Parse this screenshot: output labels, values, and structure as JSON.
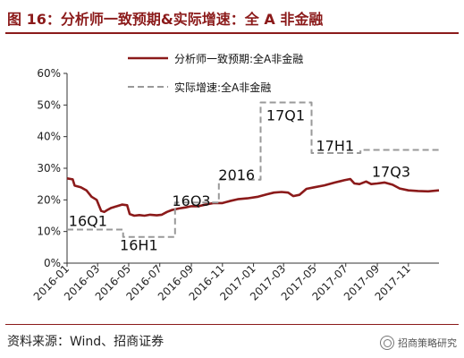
{
  "title": "图 16：分析师一致预期&实际增速：全 A 非金融",
  "source": "资料来源：Wind、招商证券",
  "brand": "招商策略研究",
  "chart_data": {
    "type": "line",
    "ylim": [
      0,
      60
    ],
    "y_ticks": [
      "0%",
      "10%",
      "20%",
      "30%",
      "40%",
      "50%",
      "60%"
    ],
    "x_range": [
      "2016-01-01",
      "2017-12-31"
    ],
    "x_ticks": [
      "2016-01",
      "2016-03",
      "2016-05",
      "2016-07",
      "2016-09",
      "2016-11",
      "2017-01",
      "2017-03",
      "2017-05",
      "2017-07",
      "2017-09",
      "2017-11"
    ],
    "legend_position": "top-center",
    "grid": false,
    "series": [
      {
        "name": "分析师一致预期:全A非金融",
        "style": "solid",
        "color": "#8B1A1A",
        "points": [
          [
            "2016-01-01",
            26.8
          ],
          [
            "2016-01-12",
            26.5
          ],
          [
            "2016-01-16",
            24.5
          ],
          [
            "2016-01-28",
            24.0
          ],
          [
            "2016-02-08",
            23.0
          ],
          [
            "2016-02-18",
            21.0
          ],
          [
            "2016-02-28",
            20.0
          ],
          [
            "2016-03-08",
            16.5
          ],
          [
            "2016-03-14",
            16.2
          ],
          [
            "2016-03-20",
            16.8
          ],
          [
            "2016-03-28",
            17.5
          ],
          [
            "2016-04-08",
            18.0
          ],
          [
            "2016-04-18",
            18.5
          ],
          [
            "2016-04-28",
            18.3
          ],
          [
            "2016-05-03",
            15.5
          ],
          [
            "2016-05-12",
            15.0
          ],
          [
            "2016-05-22",
            15.2
          ],
          [
            "2016-06-01",
            15.0
          ],
          [
            "2016-06-12",
            15.3
          ],
          [
            "2016-06-25",
            15.1
          ],
          [
            "2016-07-05",
            15.3
          ],
          [
            "2016-07-15",
            16.2
          ],
          [
            "2016-07-25",
            16.8
          ],
          [
            "2016-08-08",
            17.3
          ],
          [
            "2016-08-20",
            17.6
          ],
          [
            "2016-09-01",
            18.0
          ],
          [
            "2016-09-15",
            18.0
          ],
          [
            "2016-10-01",
            18.6
          ],
          [
            "2016-10-15",
            19.0
          ],
          [
            "2016-11-01",
            19.0
          ],
          [
            "2016-11-15",
            19.6
          ],
          [
            "2016-12-01",
            20.2
          ],
          [
            "2016-12-20",
            20.5
          ],
          [
            "2017-01-10",
            21.0
          ],
          [
            "2017-01-28",
            21.8
          ],
          [
            "2017-02-10",
            22.3
          ],
          [
            "2017-02-25",
            22.5
          ],
          [
            "2017-03-10",
            22.3
          ],
          [
            "2017-03-20",
            21.2
          ],
          [
            "2017-04-01",
            21.6
          ],
          [
            "2017-04-15",
            23.5
          ],
          [
            "2017-05-01",
            24.0
          ],
          [
            "2017-05-20",
            24.6
          ],
          [
            "2017-06-10",
            25.5
          ],
          [
            "2017-06-28",
            26.2
          ],
          [
            "2017-07-10",
            26.6
          ],
          [
            "2017-07-18",
            25.2
          ],
          [
            "2017-07-28",
            25.0
          ],
          [
            "2017-08-10",
            25.8
          ],
          [
            "2017-08-20",
            25.0
          ],
          [
            "2017-09-01",
            25.2
          ],
          [
            "2017-09-15",
            25.5
          ],
          [
            "2017-10-01",
            24.8
          ],
          [
            "2017-10-15",
            23.6
          ],
          [
            "2017-11-01",
            23.0
          ],
          [
            "2017-11-20",
            22.8
          ],
          [
            "2017-12-10",
            22.7
          ],
          [
            "2017-12-31",
            23.0
          ]
        ]
      },
      {
        "name": "实际增速:全A非金融",
        "style": "dashed",
        "color": "#999999",
        "points": [
          [
            "2016-01-01",
            10.6
          ],
          [
            "2016-04-20",
            10.6
          ],
          [
            "2016-04-20",
            8.3
          ],
          [
            "2016-07-31",
            8.3
          ],
          [
            "2016-07-31",
            19.2
          ],
          [
            "2016-10-25",
            19.2
          ],
          [
            "2016-10-25",
            26.4
          ],
          [
            "2017-01-15",
            26.4
          ],
          [
            "2017-01-15",
            50.8
          ],
          [
            "2017-04-25",
            50.8
          ],
          [
            "2017-04-25",
            34.8
          ],
          [
            "2017-07-30",
            34.8
          ],
          [
            "2017-07-30",
            35.8
          ],
          [
            "2017-12-31",
            35.8
          ]
        ]
      }
    ],
    "annotations": [
      {
        "text": "16Q1",
        "x": "2016-02-11",
        "y": 13.5
      },
      {
        "text": "16H1",
        "x": "2016-05-21",
        "y": 5.8
      },
      {
        "text": "16Q3",
        "x": "2016-09-01",
        "y": 19.8
      },
      {
        "text": "2016",
        "x": "2016-11-29",
        "y": 28.0
      },
      {
        "text": "17Q1",
        "x": "2017-03-05",
        "y": 46.8
      },
      {
        "text": "17H1",
        "x": "2017-06-10",
        "y": 37.2
      },
      {
        "text": "17Q3",
        "x": "2017-09-28",
        "y": 29.0
      }
    ]
  }
}
